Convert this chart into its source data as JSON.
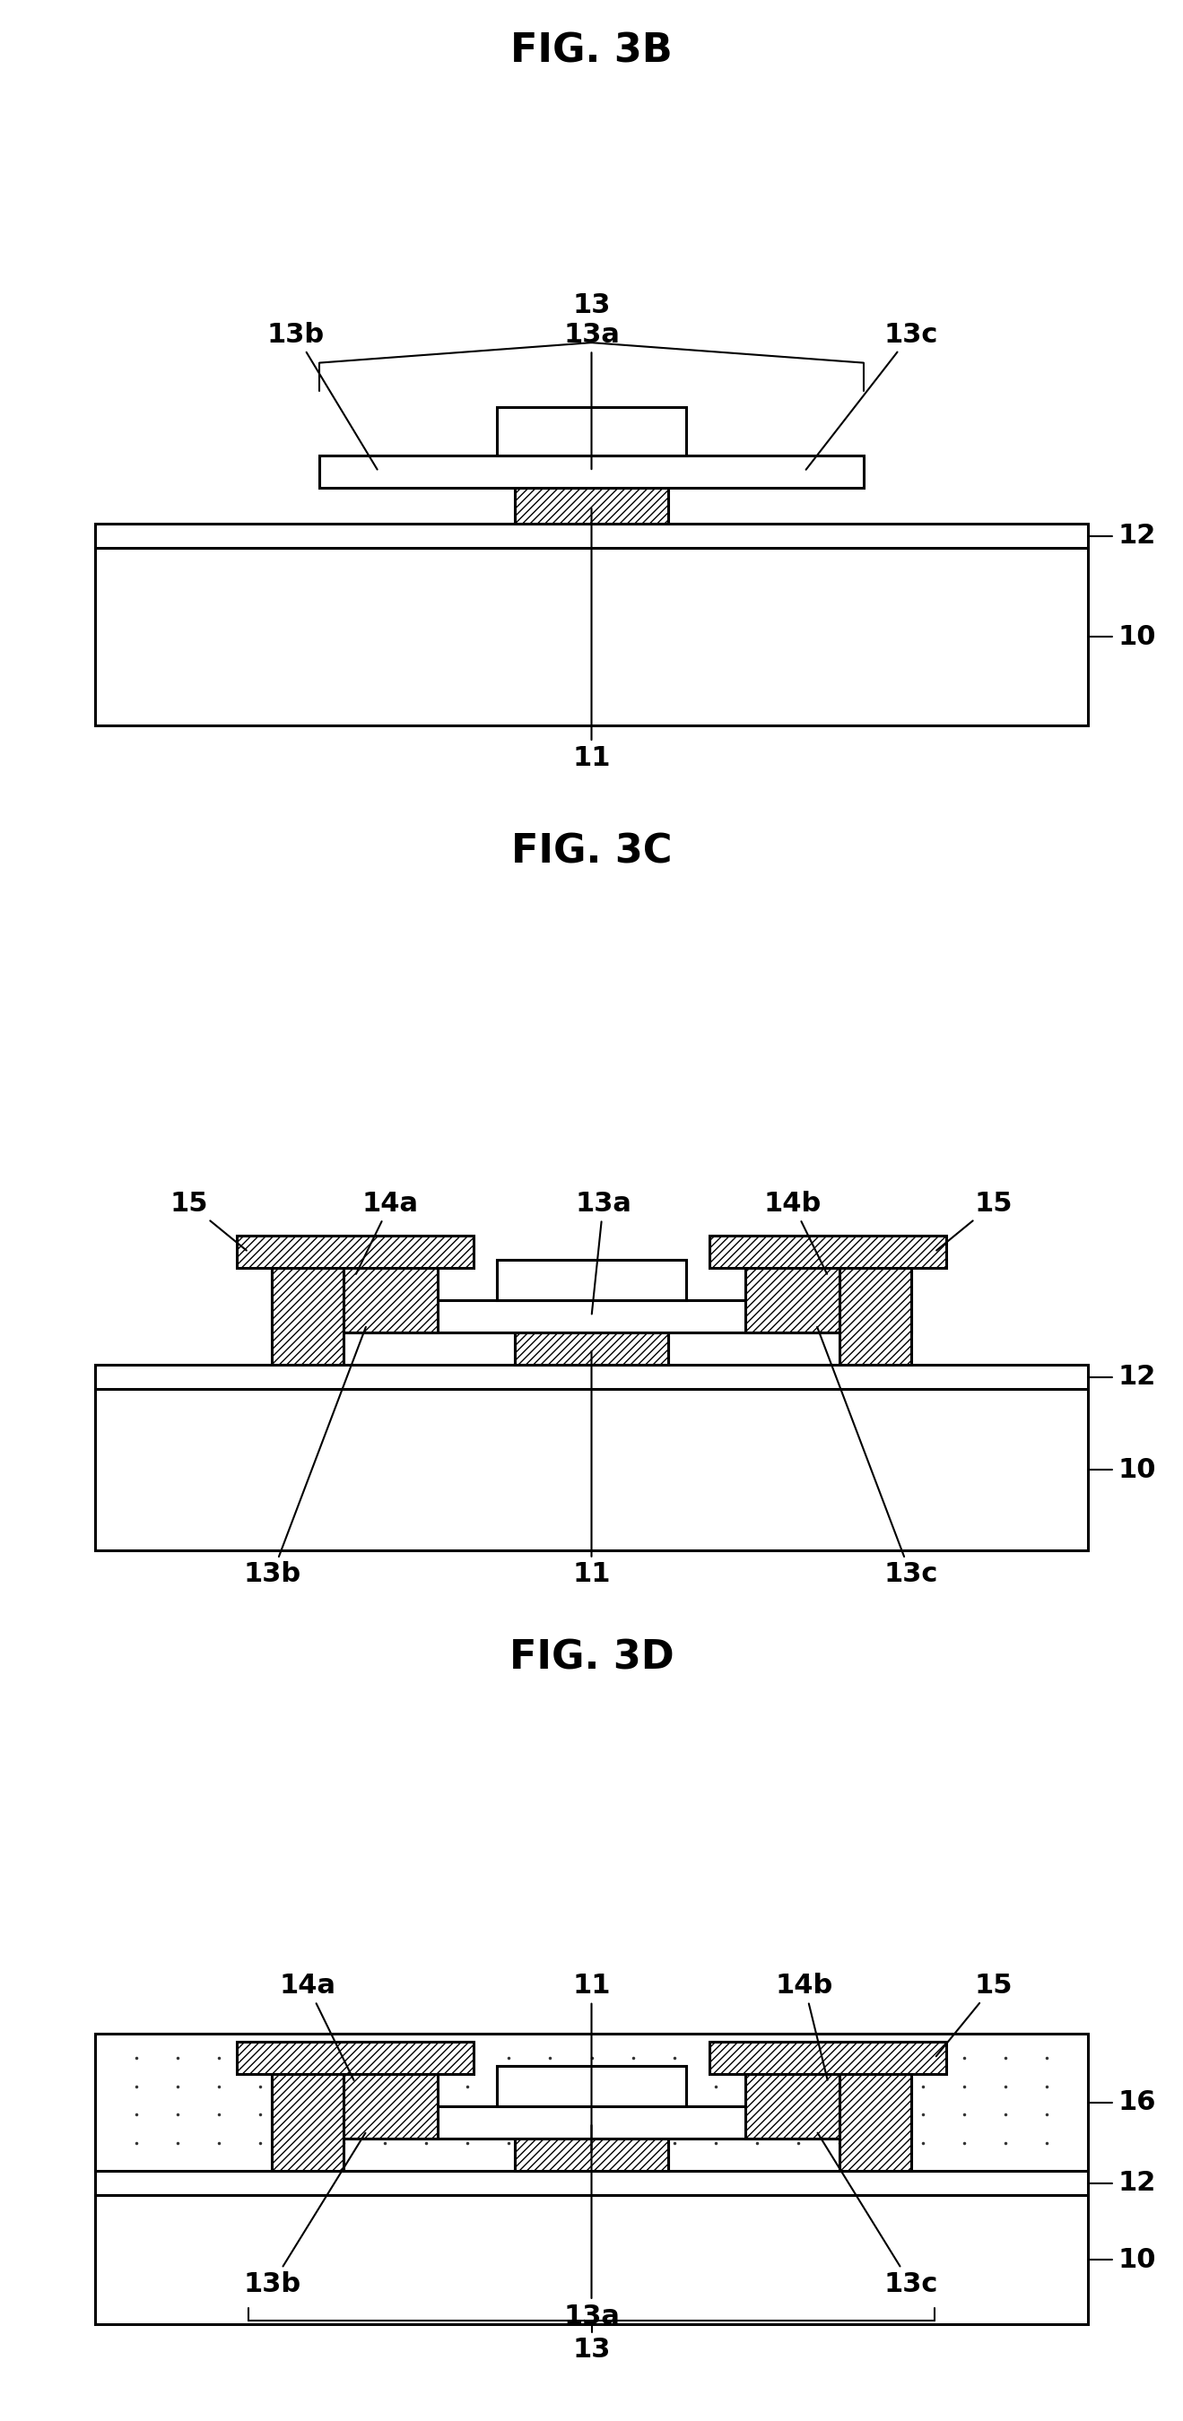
{
  "fig_title_3b": "FIG. 3B",
  "fig_title_3c": "FIG. 3C",
  "fig_title_3d": "FIG. 3D",
  "bg_color": "#ffffff",
  "lc": "#000000",
  "lw": 2.2,
  "lw_thin": 1.5,
  "fs_title": 32,
  "fs_label": 22
}
